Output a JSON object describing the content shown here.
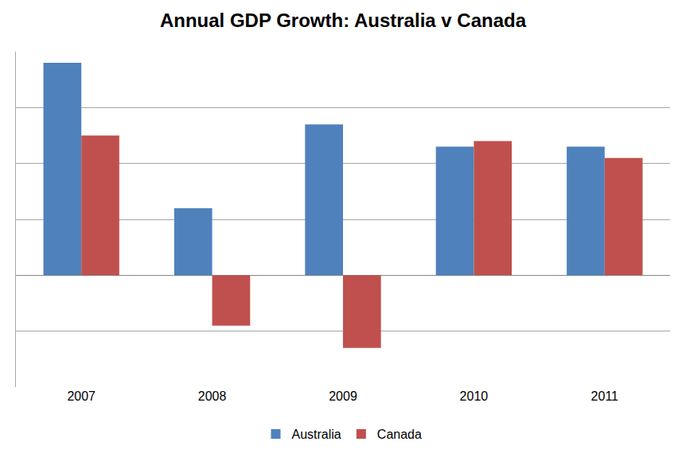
{
  "chart_data": {
    "type": "bar",
    "title": "Annual GDP Growth: Australia v Canada",
    "categories": [
      "2007",
      "2008",
      "2009",
      "2010",
      "2011"
    ],
    "series": [
      {
        "name": "Australia",
        "color": "#4f81bd",
        "values": [
          3.8,
          1.2,
          2.7,
          2.3,
          2.3
        ]
      },
      {
        "name": "Canada",
        "color": "#c0504d",
        "values": [
          2.5,
          -0.9,
          -1.3,
          2.4,
          2.1
        ]
      }
    ],
    "ylim": [
      -2,
      4
    ],
    "yticks": [
      -2,
      -1,
      0,
      1,
      2,
      3,
      4
    ],
    "grid": true,
    "legend": "bottom",
    "tick_labels": "x"
  }
}
